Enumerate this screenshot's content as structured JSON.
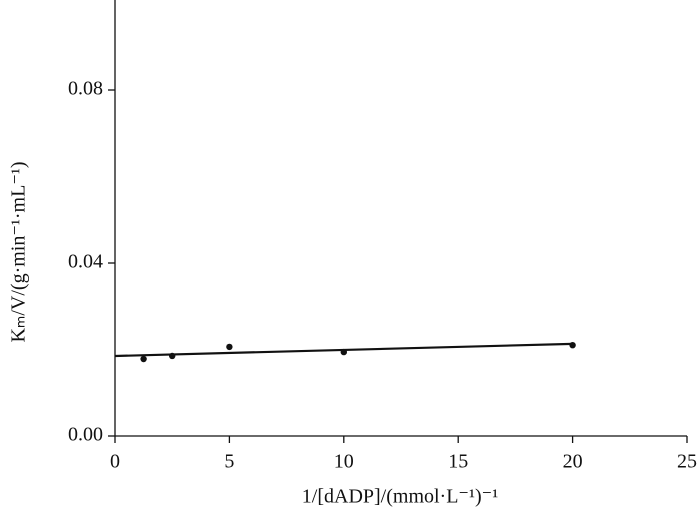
{
  "chart_data": {
    "type": "scatter",
    "x_label": "1/[dADP]/(mmol·L⁻¹)⁻¹",
    "y_label": "Kₘ/V/(g·min⁻¹·mL⁻¹)",
    "series": [
      {
        "x": [
          1.25,
          2.5,
          5,
          10,
          20
        ],
        "values": [
          0.0178,
          0.0185,
          0.0206,
          0.0194,
          0.021
        ],
        "color": "#111111"
      }
    ],
    "fit": {
      "x": [
        0,
        20
      ],
      "values": [
        0.0185,
        0.0213
      ],
      "color": "#111111"
    },
    "xlim": [
      0,
      25
    ],
    "xticks": [
      0,
      5,
      10,
      15,
      20,
      25
    ],
    "ylim": [
      0,
      0.1
    ],
    "yticks": [
      {
        "value": 0,
        "label": "0.00"
      },
      0.04,
      0.08
    ],
    "grid": false
  }
}
